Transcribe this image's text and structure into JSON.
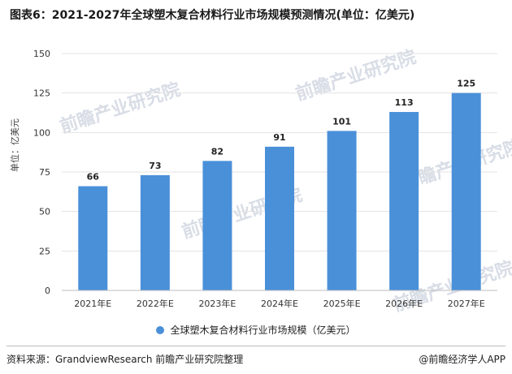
{
  "title": "图表6：2021-2027年全球塑木复合材料行业市场规模预测情况(单位：亿美元)",
  "ylabel": "单位：亿美元",
  "legend_label": "全球塑木复合材料行业市场规模（亿美元）",
  "source": "资料来源：GrandviewResearch 前瞻产业研究院整理",
  "brand": "@前瞻经济学人APP",
  "watermark_text": "前瞻产业研究院",
  "colors": {
    "bar": "#4a90d9",
    "grid": "#e3e3e3",
    "axis": "#bdbdbd",
    "text": "#333333"
  },
  "chart_data": {
    "type": "bar",
    "categories": [
      "2021年E",
      "2022年E",
      "2023年E",
      "2024年E",
      "2025年E",
      "2026年E",
      "2027年E"
    ],
    "series": [
      {
        "name": "全球塑木复合材料行业市场规模（亿美元）",
        "values": [
          66,
          73,
          82,
          91,
          101,
          113,
          125
        ]
      }
    ],
    "ylim": [
      0,
      150
    ],
    "yticks": [
      0,
      25,
      50,
      75,
      100,
      125,
      150
    ],
    "ylabel": "单位：亿美元",
    "grid": true,
    "legend": "bottom"
  }
}
